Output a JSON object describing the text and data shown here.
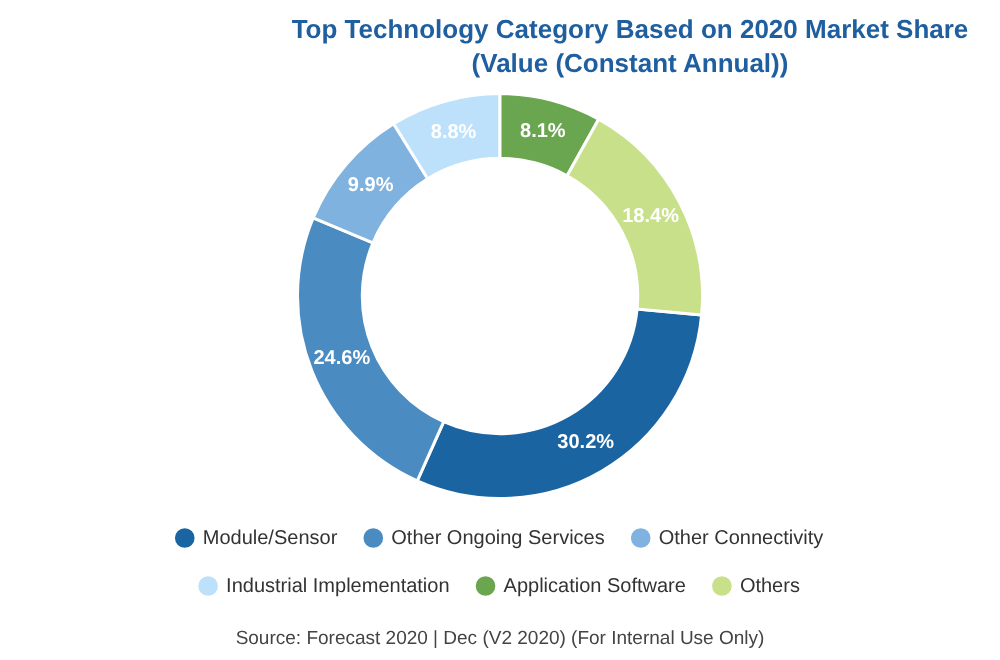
{
  "chart_data": {
    "type": "donut",
    "title": "Top Technology Category Based on 2020 Market Share (Value (Constant Annual))",
    "categories": [
      "Module/Sensor",
      "Other Ongoing Services",
      "Other Connectivity",
      "Industrial Implementation",
      "Application Software",
      "Others"
    ],
    "values": [
      30.2,
      24.6,
      9.9,
      8.8,
      8.1,
      18.4
    ],
    "value_labels": [
      "30.2%",
      "24.6%",
      "9.9%",
      "8.8%",
      "8.1%",
      "18.4%"
    ],
    "colors": [
      "#1a64a2",
      "#4a8bc2",
      "#7fb2de",
      "#bde0fb",
      "#6aa54f",
      "#c9e08a"
    ],
    "legend": "bottom",
    "annotations": [
      "Source: Forecast 2020 | Dec (V2 2020) (For Internal Use Only)"
    ]
  }
}
